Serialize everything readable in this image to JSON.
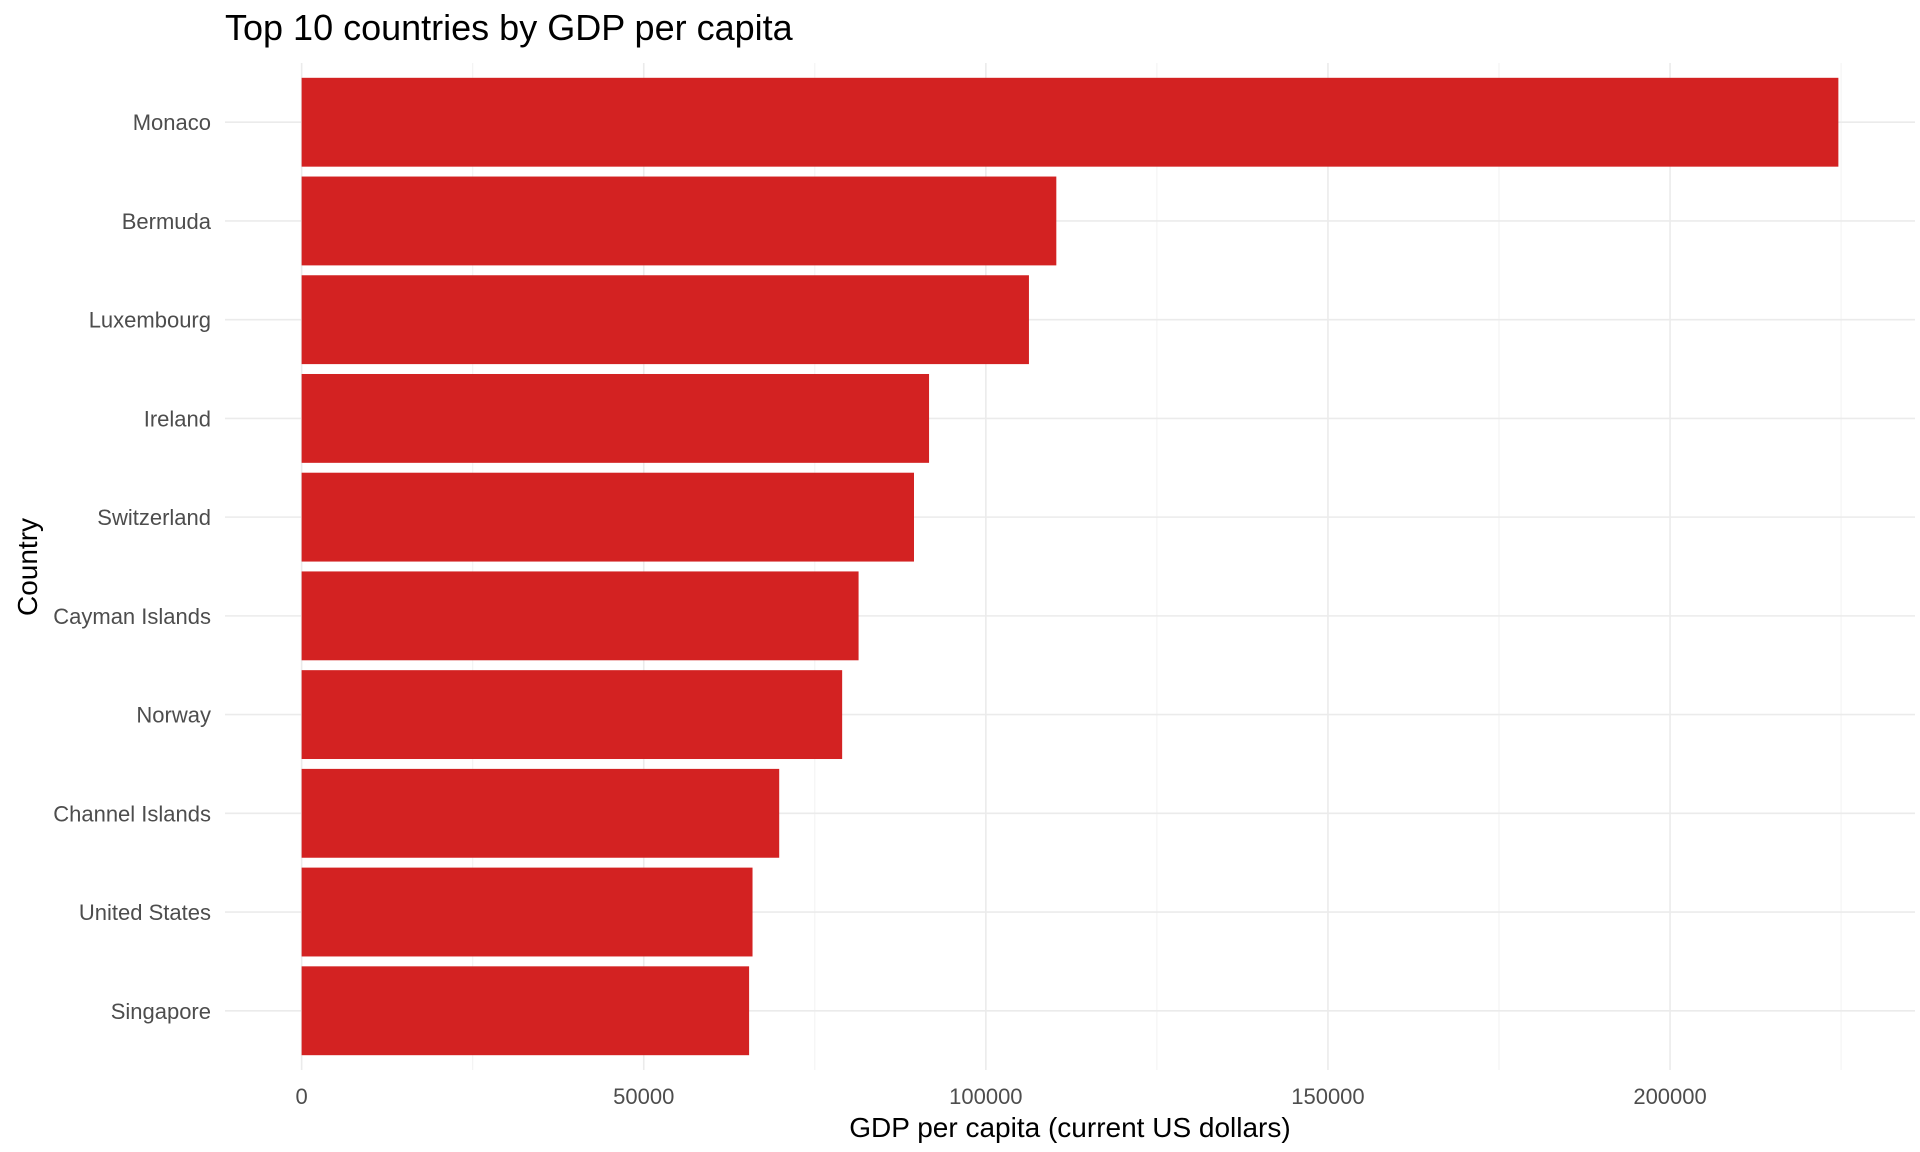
{
  "chart_data": {
    "type": "bar",
    "orientation": "horizontal",
    "title": "Top 10 countries by GDP per capita",
    "xlabel": "GDP per capita (current US dollars)",
    "ylabel": "Country",
    "categories": [
      "Monaco",
      "Bermuda",
      "Luxembourg",
      "Ireland",
      "Switzerland",
      "Cayman Islands",
      "Norway",
      "Channel Islands",
      "United States",
      "Singapore"
    ],
    "values": [
      224600,
      110300,
      106300,
      91700,
      89500,
      81400,
      79000,
      69800,
      65900,
      65400
    ],
    "xlim": [
      -11200,
      235800
    ],
    "xticks": [
      0,
      50000,
      100000,
      150000,
      200000
    ],
    "xtick_labels": [
      "0",
      "50000",
      "100000",
      "150000",
      "200000"
    ],
    "grid": true,
    "legend": "none",
    "bar_color": "#d32222"
  }
}
